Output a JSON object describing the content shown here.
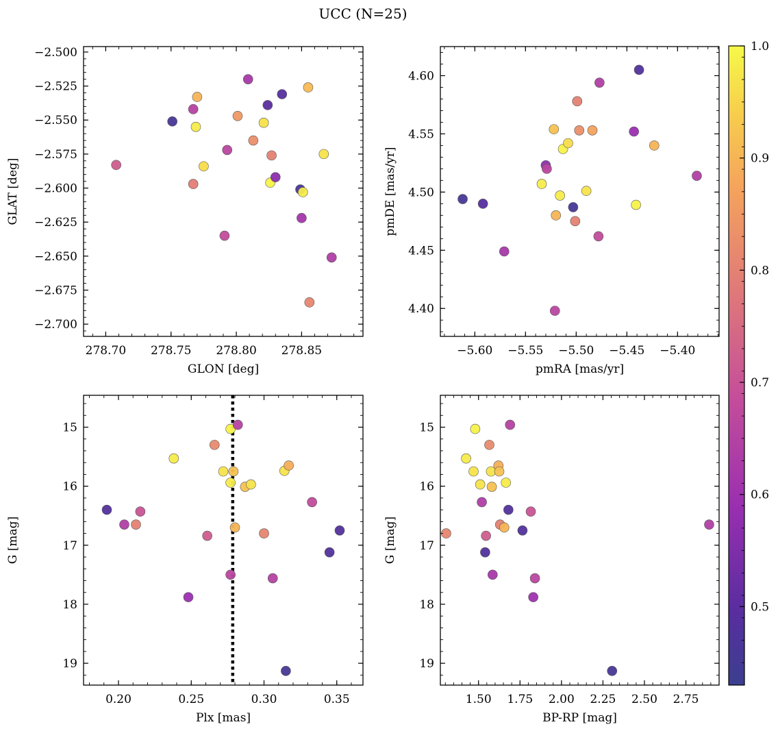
{
  "figure": {
    "title": "UCC (N=25)"
  },
  "colorbar": {
    "cmap": "plasma",
    "range": [
      0.43,
      1.0
    ],
    "ticks": [
      0.5,
      0.6,
      0.7,
      0.8,
      0.9,
      1.0
    ],
    "tick_labels": [
      "0.5",
      "0.6",
      "0.7",
      "0.8",
      "0.9",
      "1.0"
    ]
  },
  "chart_data": [
    {
      "type": "scatter",
      "xlabel": "GLON [deg]",
      "ylabel": "GLAT [deg]",
      "xlim": [
        278.683,
        278.897
      ],
      "ylim": [
        -2.709,
        -2.496
      ],
      "xticks": [
        278.7,
        278.75,
        278.8,
        278.85
      ],
      "xtick_labels": [
        "278.70",
        "278.75",
        "278.80",
        "278.85"
      ],
      "yticks": [
        -2.5,
        -2.525,
        -2.55,
        -2.575,
        -2.6,
        -2.625,
        -2.65,
        -2.675,
        -2.7
      ],
      "ytick_labels": [
        "−2.500",
        "−2.525",
        "−2.550",
        "−2.575",
        "−2.600",
        "−2.625",
        "−2.650",
        "−2.675",
        "−2.700"
      ],
      "points": [
        {
          "x": 278.708,
          "y": -2.583,
          "c": 0.72
        },
        {
          "x": 278.751,
          "y": -2.551,
          "c": 0.46
        },
        {
          "x": 278.767,
          "y": -2.542,
          "c": 0.65
        },
        {
          "x": 278.767,
          "y": -2.597,
          "c": 0.79
        },
        {
          "x": 278.769,
          "y": -2.555,
          "c": 0.98
        },
        {
          "x": 278.77,
          "y": -2.533,
          "c": 0.9
        },
        {
          "x": 278.775,
          "y": -2.584,
          "c": 0.96
        },
        {
          "x": 278.791,
          "y": -2.635,
          "c": 0.68
        },
        {
          "x": 278.793,
          "y": -2.572,
          "c": 0.66
        },
        {
          "x": 278.801,
          "y": -2.547,
          "c": 0.85
        },
        {
          "x": 278.809,
          "y": -2.52,
          "c": 0.62
        },
        {
          "x": 278.813,
          "y": -2.565,
          "c": 0.83
        },
        {
          "x": 278.821,
          "y": -2.552,
          "c": 0.97
        },
        {
          "x": 278.824,
          "y": -2.539,
          "c": 0.5
        },
        {
          "x": 278.826,
          "y": -2.596,
          "c": 0.99
        },
        {
          "x": 278.827,
          "y": -2.576,
          "c": 0.8
        },
        {
          "x": 278.83,
          "y": -2.592,
          "c": 0.57
        },
        {
          "x": 278.835,
          "y": -2.531,
          "c": 0.49
        },
        {
          "x": 278.849,
          "y": -2.601,
          "c": 0.46
        },
        {
          "x": 278.85,
          "y": -2.622,
          "c": 0.61
        },
        {
          "x": 278.851,
          "y": -2.603,
          "c": 0.98
        },
        {
          "x": 278.855,
          "y": -2.526,
          "c": 0.91
        },
        {
          "x": 278.856,
          "y": -2.684,
          "c": 0.81
        },
        {
          "x": 278.867,
          "y": -2.575,
          "c": 0.97
        },
        {
          "x": 278.873,
          "y": -2.651,
          "c": 0.64
        }
      ]
    },
    {
      "type": "scatter",
      "xlabel": "pmRA [mas/yr]",
      "ylabel": "pmDE [mas/yr]",
      "xlim": [
        -5.634,
        -5.359
      ],
      "ylim": [
        4.376,
        4.625
      ],
      "xticks": [
        -5.6,
        -5.55,
        -5.5,
        -5.45,
        -5.4
      ],
      "xtick_labels": [
        "−5.60",
        "−5.55",
        "−5.50",
        "−5.45",
        "−5.40"
      ],
      "yticks": [
        4.4,
        4.45,
        4.5,
        4.55,
        4.6
      ],
      "ytick_labels": [
        "4.40",
        "4.45",
        "4.50",
        "4.55",
        "4.60"
      ],
      "points": [
        {
          "x": -5.612,
          "y": 4.494,
          "c": 0.46
        },
        {
          "x": -5.592,
          "y": 4.49,
          "c": 0.49
        },
        {
          "x": -5.571,
          "y": 4.449,
          "c": 0.62
        },
        {
          "x": -5.534,
          "y": 4.507,
          "c": 0.98
        },
        {
          "x": -5.53,
          "y": 4.523,
          "c": 0.57
        },
        {
          "x": -5.529,
          "y": 4.52,
          "c": 0.66
        },
        {
          "x": -5.522,
          "y": 4.554,
          "c": 0.92
        },
        {
          "x": -5.521,
          "y": 4.398,
          "c": 0.66
        },
        {
          "x": -5.52,
          "y": 4.48,
          "c": 0.9
        },
        {
          "x": -5.516,
          "y": 4.497,
          "c": 0.98
        },
        {
          "x": -5.513,
          "y": 4.537,
          "c": 0.99
        },
        {
          "x": -5.508,
          "y": 4.542,
          "c": 0.96
        },
        {
          "x": -5.503,
          "y": 4.487,
          "c": 0.46
        },
        {
          "x": -5.501,
          "y": 4.475,
          "c": 0.8
        },
        {
          "x": -5.499,
          "y": 4.578,
          "c": 0.8
        },
        {
          "x": -5.497,
          "y": 4.553,
          "c": 0.83
        },
        {
          "x": -5.49,
          "y": 4.501,
          "c": 0.97
        },
        {
          "x": -5.484,
          "y": 4.553,
          "c": 0.87
        },
        {
          "x": -5.478,
          "y": 4.462,
          "c": 0.68
        },
        {
          "x": -5.477,
          "y": 4.594,
          "c": 0.64
        },
        {
          "x": -5.443,
          "y": 4.552,
          "c": 0.59
        },
        {
          "x": -5.441,
          "y": 4.489,
          "c": 0.99
        },
        {
          "x": -5.438,
          "y": 4.605,
          "c": 0.48
        },
        {
          "x": -5.423,
          "y": 4.54,
          "c": 0.9
        },
        {
          "x": -5.381,
          "y": 4.514,
          "c": 0.64
        }
      ]
    },
    {
      "type": "scatter",
      "xlabel": "Plx [mas]",
      "ylabel": "G [mag]",
      "xlim": [
        0.176,
        0.368
      ],
      "ylim": [
        19.37,
        14.46
      ],
      "y_inverted": true,
      "xticks": [
        0.2,
        0.25,
        0.3,
        0.35
      ],
      "xtick_labels": [
        "0.20",
        "0.25",
        "0.30",
        "0.35"
      ],
      "yticks": [
        15,
        16,
        17,
        18,
        19
      ],
      "ytick_labels": [
        "15",
        "16",
        "17",
        "18",
        "19"
      ],
      "vline": {
        "x": 0.2785,
        "style": "dotted",
        "color": "#000000"
      },
      "points": [
        {
          "x": 0.192,
          "y": 16.4,
          "c": 0.48
        },
        {
          "x": 0.204,
          "y": 16.65,
          "c": 0.64
        },
        {
          "x": 0.212,
          "y": 16.65,
          "c": 0.8
        },
        {
          "x": 0.215,
          "y": 16.43,
          "c": 0.7
        },
        {
          "x": 0.238,
          "y": 15.53,
          "c": 0.98
        },
        {
          "x": 0.248,
          "y": 17.88,
          "c": 0.59
        },
        {
          "x": 0.261,
          "y": 16.84,
          "c": 0.72
        },
        {
          "x": 0.266,
          "y": 15.3,
          "c": 0.82
        },
        {
          "x": 0.272,
          "y": 15.75,
          "c": 0.97
        },
        {
          "x": 0.277,
          "y": 15.03,
          "c": 0.99
        },
        {
          "x": 0.277,
          "y": 15.94,
          "c": 0.98
        },
        {
          "x": 0.277,
          "y": 17.5,
          "c": 0.66
        },
        {
          "x": 0.279,
          "y": 15.75,
          "c": 0.92
        },
        {
          "x": 0.28,
          "y": 16.7,
          "c": 0.9
        },
        {
          "x": 0.282,
          "y": 14.96,
          "c": 0.65
        },
        {
          "x": 0.287,
          "y": 16.01,
          "c": 0.92
        },
        {
          "x": 0.291,
          "y": 15.97,
          "c": 0.97
        },
        {
          "x": 0.3,
          "y": 16.8,
          "c": 0.81
        },
        {
          "x": 0.306,
          "y": 17.56,
          "c": 0.65
        },
        {
          "x": 0.314,
          "y": 15.74,
          "c": 0.97
        },
        {
          "x": 0.315,
          "y": 19.13,
          "c": 0.46
        },
        {
          "x": 0.317,
          "y": 15.65,
          "c": 0.89
        },
        {
          "x": 0.333,
          "y": 16.27,
          "c": 0.68
        },
        {
          "x": 0.345,
          "y": 17.12,
          "c": 0.48
        },
        {
          "x": 0.352,
          "y": 16.75,
          "c": 0.48
        }
      ]
    },
    {
      "type": "scatter",
      "xlabel": "BP-RP [mag]",
      "ylabel": "G [mag]",
      "xlim": [
        1.27,
        2.95
      ],
      "ylim": [
        19.37,
        14.46
      ],
      "y_inverted": true,
      "xticks": [
        1.25,
        1.5,
        1.75,
        2.0,
        2.25,
        2.5,
        2.75
      ],
      "xtick_labels": [
        "1.25",
        "1.50",
        "1.75",
        "2.00",
        "2.25",
        "2.50",
        "2.75"
      ],
      "yticks": [
        15,
        16,
        17,
        18,
        19
      ],
      "ytick_labels": [
        "15",
        "16",
        "17",
        "18",
        "19"
      ],
      "points": [
        {
          "x": 1.305,
          "y": 16.8,
          "c": 0.81
        },
        {
          "x": 1.425,
          "y": 15.53,
          "c": 0.98
        },
        {
          "x": 1.47,
          "y": 15.75,
          "c": 0.97
        },
        {
          "x": 1.48,
          "y": 15.03,
          "c": 0.99
        },
        {
          "x": 1.51,
          "y": 15.97,
          "c": 0.97
        },
        {
          "x": 1.52,
          "y": 16.27,
          "c": 0.64
        },
        {
          "x": 1.54,
          "y": 17.12,
          "c": 0.48
        },
        {
          "x": 1.545,
          "y": 16.84,
          "c": 0.72
        },
        {
          "x": 1.565,
          "y": 15.3,
          "c": 0.82
        },
        {
          "x": 1.575,
          "y": 15.75,
          "c": 0.97
        },
        {
          "x": 1.58,
          "y": 16.01,
          "c": 0.92
        },
        {
          "x": 1.585,
          "y": 17.5,
          "c": 0.62
        },
        {
          "x": 1.62,
          "y": 15.65,
          "c": 0.89
        },
        {
          "x": 1.625,
          "y": 15.75,
          "c": 0.92
        },
        {
          "x": 1.63,
          "y": 16.65,
          "c": 0.8
        },
        {
          "x": 1.655,
          "y": 16.7,
          "c": 0.9
        },
        {
          "x": 1.665,
          "y": 15.94,
          "c": 0.98
        },
        {
          "x": 1.68,
          "y": 16.4,
          "c": 0.48
        },
        {
          "x": 1.69,
          "y": 14.96,
          "c": 0.65
        },
        {
          "x": 1.765,
          "y": 16.75,
          "c": 0.48
        },
        {
          "x": 1.815,
          "y": 16.43,
          "c": 0.7
        },
        {
          "x": 1.83,
          "y": 17.88,
          "c": 0.6
        },
        {
          "x": 1.84,
          "y": 17.56,
          "c": 0.66
        },
        {
          "x": 2.305,
          "y": 19.13,
          "c": 0.46
        },
        {
          "x": 2.89,
          "y": 16.65,
          "c": 0.64
        }
      ]
    }
  ]
}
